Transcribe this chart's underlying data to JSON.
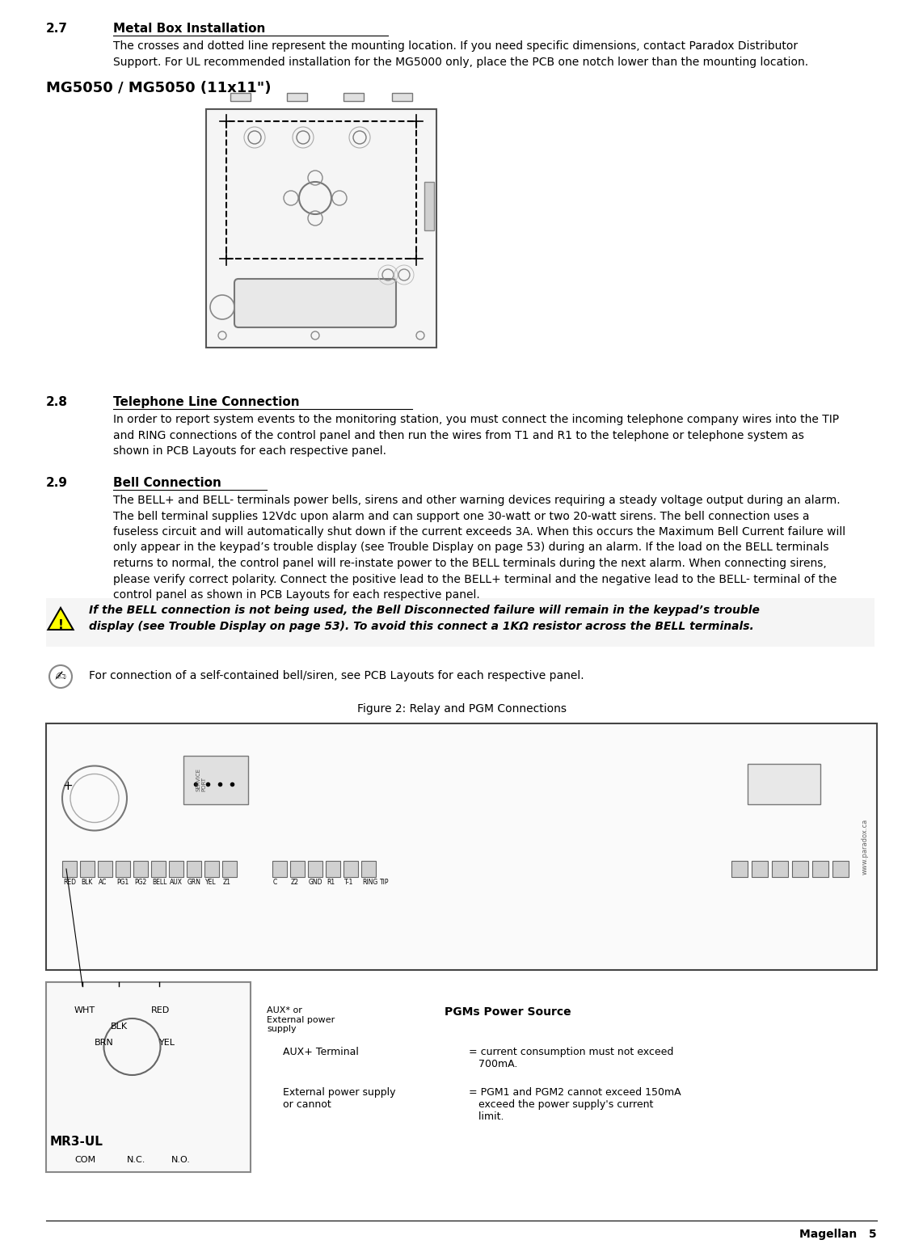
{
  "title_section": "2.7     Metal Box Installation",
  "body_text_1": "The crosses and dotted line represent the mounting location. If you need specific dimensions, contact Paradox Distributor\nSupport. For UL recommended installation for the MG5000 only, place the PCB one notch lower than the mounting location.",
  "mg_heading": "MG5050 / MG5050 (11x11\")",
  "section_28_title": "2.8     Telephone Line Connection",
  "section_28_body": "In order to report system events to the monitoring station, you must connect the incoming telephone company wires into the TIP\nand RING connections of the control panel and then run the wires from T1 and R1 to the telephone or telephone system as\nshown in PCB Layouts for each respective panel.",
  "section_29_title": "2.9     Bell Connection",
  "section_29_body": "The BELL+ and BELL- terminals power bells, sirens and other warning devices requiring a steady voltage output during an alarm.\nThe bell terminal supplies 12Vdc upon alarm and can support one 30-watt or two 20-watt sirens. The bell connection uses a\nfuseless circuit and will automatically shut down if the current exceeds 3A. When this occurs the Maximum Bell Current failure will\nonly appear in the keypad’s trouble display (see Trouble Display on page 53) during an alarm. If the load on the BELL terminals\nreturns to normal, the control panel will re-instate power to the BELL terminals during the next alarm. When connecting sirens,\nplease verify correct polarity. Connect the positive lead to the BELL+ terminal and the negative lead to the BELL- terminal of the\ncontrol panel as shown in PCB Layouts for each respective panel.",
  "warning_text": "If the BELL connection is not being used, the Bell Disconnected failure will remain in the keypad’s trouble\ndisplay (see Trouble Display on page 53). To avoid this connect a 1KΩ resistor across the BELL terminals.",
  "note_text": "For connection of a self-contained bell/siren, see PCB Layouts for each respective panel.",
  "figure_caption": "Figure 2: Relay and PGM Connections",
  "footer_text": "Magellan   5",
  "bg_color": "#ffffff",
  "text_color": "#000000",
  "font_family": "DejaVu Sans"
}
